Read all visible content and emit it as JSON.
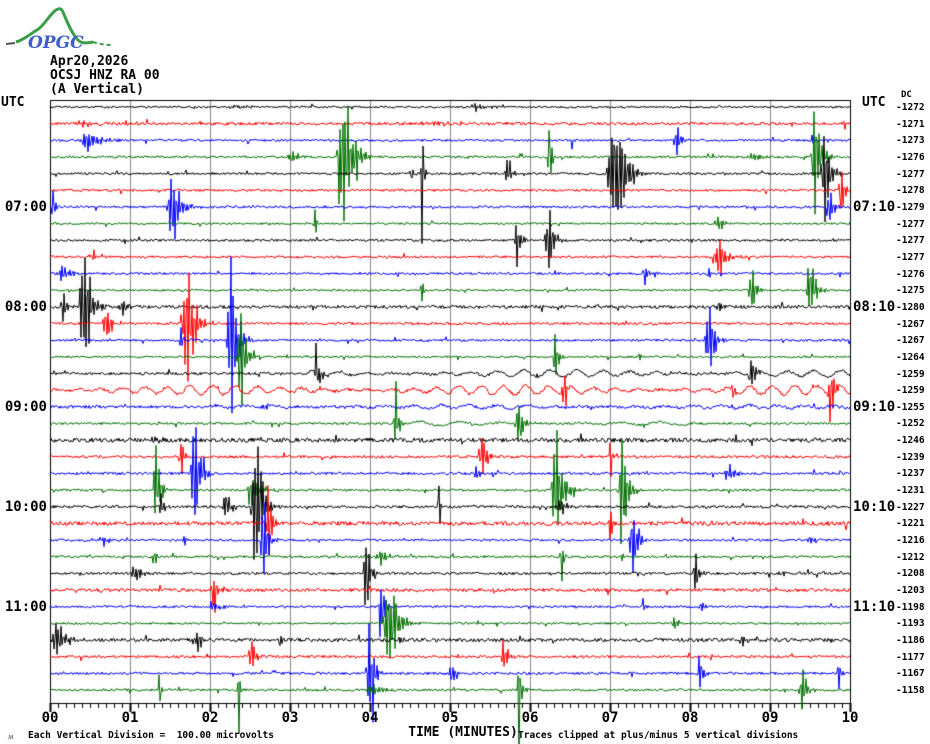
{
  "header": {
    "logo_text": "OPGC",
    "date": "Apr20,2026",
    "station": "OCSJ HNZ RA 00",
    "channel": "(A Vertical)"
  },
  "axes": {
    "utc_left_label": "UTC",
    "utc_right_label": "UTC",
    "dc_label": "DC",
    "x_axis_label": "TIME (MINUTES)",
    "x_tick_labels": [
      "00",
      "01",
      "02",
      "03",
      "04",
      "05",
      "06",
      "07",
      "08",
      "09",
      "10"
    ],
    "x_range_minutes": [
      0,
      10
    ],
    "minor_tick_minutes": 0.1
  },
  "left_hour_labels": [
    {
      "text": "07:00",
      "trace": 6
    },
    {
      "text": "08:00",
      "trace": 12
    },
    {
      "text": "09:00",
      "trace": 18
    },
    {
      "text": "10:00",
      "trace": 24
    },
    {
      "text": "11:00",
      "trace": 30
    }
  ],
  "right_hour_labels": [
    {
      "text": "07:10",
      "trace": 6
    },
    {
      "text": "08:10",
      "trace": 12
    },
    {
      "text": "09:10",
      "trace": 18
    },
    {
      "text": "10:10",
      "trace": 24
    },
    {
      "text": "11:10",
      "trace": 30
    }
  ],
  "footer": {
    "corner_mark": "ᴍ",
    "left_note": "Each Vertical Division =  100.00 microvolts",
    "right_note": "Traces clipped at plus/minus 5 vertical divisions"
  },
  "colors": {
    "black": "#000000",
    "red": "#ff0000",
    "blue": "#0000ff",
    "green": "#007000",
    "grid": "#888888",
    "border": "#000000",
    "logo_green": "#3a9d4a",
    "logo_blue": "#3d5ec9"
  },
  "chart_data": {
    "type": "line",
    "title": "OPGC helicorder drum record OCSJ HNZ RA 00 (A Vertical) Apr20,2026",
    "xlabel": "TIME (MINUTES)",
    "x_range": [
      0,
      10
    ],
    "minutes_per_line": 10,
    "clip_divisions": 5,
    "microvolts_per_division": 100,
    "grid": "vertical-every-minute",
    "traces": [
      {
        "utc": "06:00",
        "color": "black",
        "dc": -1272,
        "noise": 0.06,
        "events": [
          [
            2.6,
            0.15,
            0.8
          ],
          [
            5.6,
            0.2,
            0.9
          ]
        ]
      },
      {
        "utc": "06:10",
        "color": "red",
        "dc": -1271,
        "noise": 0.09,
        "events": [
          [
            0.6,
            0.2,
            0.6
          ],
          [
            5.3,
            0.15,
            1.5
          ],
          [
            9.95,
            0.4,
            0.08
          ]
        ]
      },
      {
        "utc": "06:20",
        "color": "blue",
        "dc": -1273,
        "noise": 0.07,
        "events": [
          [
            0.7,
            0.75,
            0.7
          ],
          [
            6.55,
            0.3,
            0.08
          ],
          [
            7.95,
            0.85,
            0.35
          ],
          [
            9.6,
            0.4,
            0.2
          ]
        ]
      },
      {
        "utc": "06:30",
        "color": "green",
        "dc": -1276,
        "noise": 0.07,
        "events": [
          [
            3.15,
            0.6,
            0.4
          ],
          [
            3.85,
            5.1,
            0.55
          ],
          [
            6.28,
            4.0,
            0.12
          ],
          [
            8.95,
            0.35,
            0.5
          ],
          [
            9.68,
            4.2,
            0.35
          ]
        ]
      },
      {
        "utc": "06:40",
        "color": "black",
        "dc": -1277,
        "noise": 0.07,
        "events": [
          [
            4.55,
            0.85,
            0.12
          ],
          [
            4.68,
            5.1,
            0.09
          ],
          [
            5.8,
            0.9,
            0.25
          ],
          [
            7.25,
            5.1,
            0.6
          ],
          [
            9.78,
            4.2,
            0.3
          ]
        ]
      },
      {
        "utc": "06:50",
        "color": "red",
        "dc": -1278,
        "noise": 0.07,
        "events": [
          [
            9.93,
            3.0,
            0.15
          ]
        ]
      },
      {
        "utc": "07:00",
        "color": "blue",
        "dc": -1279,
        "noise": 0.07,
        "events": [
          [
            0.07,
            2.4,
            0.1
          ],
          [
            1.68,
            2.7,
            0.45
          ],
          [
            9.8,
            1.5,
            0.2
          ]
        ]
      },
      {
        "utc": "07:10",
        "color": "green",
        "dc": -1277,
        "noise": 0.06,
        "events": [
          [
            3.35,
            1.3,
            0.12
          ],
          [
            8.5,
            0.5,
            0.45
          ]
        ]
      },
      {
        "utc": "07:20",
        "color": "black",
        "dc": -1277,
        "noise": 0.07,
        "events": [
          [
            5.92,
            1.5,
            0.25
          ],
          [
            6.33,
            2.4,
            0.3
          ]
        ]
      },
      {
        "utc": "07:30",
        "color": "red",
        "dc": -1277,
        "noise": 0.07,
        "events": [
          [
            0.7,
            0.2,
            0.5
          ],
          [
            8.5,
            1.5,
            0.45
          ]
        ]
      },
      {
        "utc": "07:40",
        "color": "blue",
        "dc": -1276,
        "noise": 0.07,
        "events": [
          [
            0.3,
            0.7,
            0.45
          ],
          [
            7.5,
            1.2,
            0.2
          ],
          [
            8.3,
            0.35,
            0.2
          ]
        ]
      },
      {
        "utc": "07:50",
        "color": "green",
        "dc": -1275,
        "noise": 0.06,
        "events": [
          [
            4.68,
            1.8,
            0.1
          ],
          [
            8.87,
            1.5,
            0.3
          ],
          [
            9.6,
            2.7,
            0.3
          ]
        ]
      },
      {
        "utc": "08:00",
        "color": "black",
        "dc": -1280,
        "noise": 0.1,
        "events": [
          [
            0.22,
            1.5,
            0.2
          ],
          [
            0.55,
            5.1,
            0.4
          ],
          [
            1.0,
            0.7,
            0.3
          ],
          [
            8.45,
            0.6,
            0.25
          ]
        ]
      },
      {
        "utc": "08:10",
        "color": "red",
        "dc": -1267,
        "noise": 0.08,
        "events": [
          [
            0.8,
            1.5,
            0.3
          ],
          [
            1.85,
            5.1,
            0.45
          ]
        ]
      },
      {
        "utc": "08:20",
        "color": "blue",
        "dc": -1267,
        "noise": 0.07,
        "events": [
          [
            1.67,
            1.8,
            0.1
          ],
          [
            2.38,
            5.1,
            0.35
          ],
          [
            8.35,
            2.7,
            0.35
          ]
        ]
      },
      {
        "utc": "08:30",
        "color": "green",
        "dc": -1264,
        "noise": 0.06,
        "events": [
          [
            2.48,
            3.6,
            0.3
          ],
          [
            6.38,
            2.1,
            0.2
          ],
          [
            7.4,
            0.5,
            0.1
          ]
        ]
      },
      {
        "utc": "08:40",
        "color": "black",
        "dc": -1259,
        "noise": 0.08,
        "wave": [
          0.2,
          0.33,
          3.2,
          10
        ],
        "events": [
          [
            3.4,
            1.8,
            0.2
          ],
          [
            8.85,
            1.5,
            0.25
          ]
        ]
      },
      {
        "utc": "08:50",
        "color": "red",
        "dc": -1259,
        "noise": 0.09,
        "wave": [
          0.27,
          0.28,
          0,
          10
        ],
        "events": [
          [
            6.47,
            1.8,
            0.15
          ],
          [
            8.57,
            1.1,
            0.1
          ],
          [
            9.82,
            2.7,
            0.2
          ]
        ]
      },
      {
        "utc": "09:00",
        "color": "blue",
        "dc": -1255,
        "noise": 0.09,
        "wave": [
          0.1,
          0.35,
          2,
          10
        ],
        "events": [
          [
            2.8,
            0.3,
            0.4
          ]
        ]
      },
      {
        "utc": "09:10",
        "color": "green",
        "dc": -1252,
        "noise": 0.07,
        "wave": [
          0.12,
          0.5,
          4.5,
          8
        ],
        "events": [
          [
            4.4,
            1.5,
            0.25
          ],
          [
            5.95,
            1.8,
            0.3
          ]
        ]
      },
      {
        "utc": "09:20",
        "color": "black",
        "dc": -1246,
        "noise": 0.13,
        "events": [
          [
            1.4,
            0.35,
            0.3
          ],
          [
            8.6,
            0.5,
            0.1
          ]
        ]
      },
      {
        "utc": "09:30",
        "color": "red",
        "dc": -1239,
        "noise": 0.08,
        "events": [
          [
            1.7,
            1.5,
            0.2
          ],
          [
            5.5,
            1.5,
            0.3
          ],
          [
            7.05,
            1.8,
            0.12
          ]
        ]
      },
      {
        "utc": "09:40",
        "color": "blue",
        "dc": -1237,
        "noise": 0.08,
        "events": [
          [
            1.9,
            5.1,
            0.3
          ],
          [
            5.4,
            0.5,
            0.2
          ],
          [
            8.6,
            0.7,
            0.4
          ]
        ]
      },
      {
        "utc": "09:50",
        "color": "green",
        "dc": -1231,
        "noise": 0.07,
        "events": [
          [
            1.4,
            3.3,
            0.25
          ],
          [
            2.7,
            1.1,
            0.5
          ],
          [
            6.45,
            4.5,
            0.4
          ],
          [
            7.25,
            4.2,
            0.3
          ]
        ]
      },
      {
        "utc": "10:00",
        "color": "black",
        "dc": -1227,
        "noise": 0.08,
        "events": [
          [
            1.45,
            0.9,
            0.2
          ],
          [
            2.3,
            1.2,
            0.3
          ],
          [
            2.7,
            5.1,
            0.4
          ],
          [
            4.88,
            4.8,
            0.08
          ],
          [
            6.5,
            0.6,
            0.4
          ]
        ]
      },
      {
        "utc": "10:10",
        "color": "red",
        "dc": -1221,
        "noise": 0.12,
        "events": [
          [
            2.8,
            2.4,
            0.2
          ],
          [
            7.05,
            1.1,
            0.15
          ]
        ]
      },
      {
        "utc": "10:20",
        "color": "blue",
        "dc": -1216,
        "noise": 0.07,
        "events": [
          [
            0.75,
            0.3,
            0.3
          ],
          [
            1.75,
            0.5,
            0.2
          ],
          [
            2.75,
            3.6,
            0.25
          ],
          [
            7.38,
            2.7,
            0.3
          ],
          [
            9.6,
            0.4,
            0.3
          ]
        ]
      },
      {
        "utc": "10:30",
        "color": "green",
        "dc": -1212,
        "noise": 0.07,
        "events": [
          [
            1.33,
            1.7,
            0.1
          ],
          [
            4.3,
            0.5,
            0.5
          ],
          [
            6.42,
            2.1,
            0.1
          ],
          [
            7.2,
            0.5,
            0.15
          ]
        ]
      },
      {
        "utc": "10:40",
        "color": "black",
        "dc": -1208,
        "noise": 0.08,
        "events": [
          [
            1.2,
            0.6,
            0.4
          ],
          [
            4.05,
            2.4,
            0.3
          ],
          [
            8.15,
            1.8,
            0.25
          ],
          [
            9.2,
            0.4,
            0.1
          ]
        ]
      },
      {
        "utc": "10:50",
        "color": "red",
        "dc": -1203,
        "noise": 0.1,
        "events": [
          [
            2.1,
            1.8,
            0.2
          ]
        ]
      },
      {
        "utc": "11:00",
        "color": "blue",
        "dc": -1198,
        "noise": 0.07,
        "events": [
          [
            2.2,
            0.35,
            0.5
          ],
          [
            4.2,
            2.9,
            0.2
          ],
          [
            7.45,
            0.7,
            0.1
          ],
          [
            8.2,
            0.5,
            0.2
          ]
        ]
      },
      {
        "utc": "11:10",
        "color": "green",
        "dc": -1193,
        "noise": 0.06,
        "events": [
          [
            4.4,
            3.3,
            0.5
          ],
          [
            7.9,
            0.4,
            0.3
          ]
        ]
      },
      {
        "utc": "11:20",
        "color": "black",
        "dc": -1186,
        "noise": 0.11,
        "events": [
          [
            0.25,
            1.2,
            0.5
          ],
          [
            2.0,
            0.6,
            0.5
          ],
          [
            2.9,
            0.7,
            0.1
          ],
          [
            4.4,
            0.6,
            0.15
          ],
          [
            8.75,
            0.5,
            0.3
          ]
        ]
      },
      {
        "utc": "11:30",
        "color": "red",
        "dc": -1177,
        "noise": 0.08,
        "events": [
          [
            2.58,
            1.8,
            0.2
          ],
          [
            5.75,
            1.7,
            0.25
          ]
        ]
      },
      {
        "utc": "11:40",
        "color": "blue",
        "dc": -1167,
        "noise": 0.08,
        "events": [
          [
            4.07,
            4.5,
            0.25
          ],
          [
            5.1,
            1.1,
            0.25
          ],
          [
            8.2,
            1.5,
            0.25
          ],
          [
            9.9,
            1.2,
            0.15
          ]
        ]
      },
      {
        "utc": "11:50",
        "color": "green",
        "dc": -1158,
        "noise": 0.07,
        "events": [
          [
            1.4,
            1.7,
            0.1
          ],
          [
            2.4,
            1.5,
            0.12
          ],
          [
            4.15,
            0.7,
            0.4
          ],
          [
            5.92,
            2.7,
            0.17
          ],
          [
            9.48,
            2.4,
            0.25
          ]
        ]
      }
    ]
  }
}
